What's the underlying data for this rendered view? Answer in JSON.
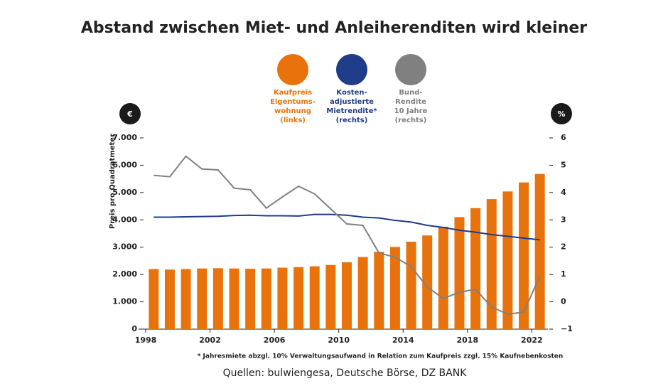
{
  "chart_data": {
    "type": "bar",
    "title": "Abstand zwischen Miet- und Anleiherenditen wird kleiner",
    "ylabel": "Preis pro Quadratmeter",
    "yunit": "€",
    "y2unit": "%",
    "footnote": "* Jahresmiete abzgl. 10% Verwaltungsaufwand in Relation zum Kaufpreis zzgl. 15% Kaufnebenkosten",
    "source": "Quellen: bulwiengesa, Deutsche Börse, DZ BANK",
    "x": [
      1998,
      1999,
      2000,
      2001,
      2002,
      2003,
      2004,
      2005,
      2006,
      2007,
      2008,
      2009,
      2010,
      2011,
      2012,
      2013,
      2014,
      2015,
      2016,
      2017,
      2018,
      2019,
      2020,
      2021,
      2022
    ],
    "xlim": [
      1998,
      2023
    ],
    "xticks": [
      1998,
      2002,
      2006,
      2010,
      2014,
      2018,
      2022
    ],
    "ylim": [
      0,
      7000
    ],
    "yticks": [
      {
        "value": 0,
        "label": "0"
      },
      {
        "value": 1000,
        "label": "1.000"
      },
      {
        "value": 2000,
        "label": "2.000"
      },
      {
        "value": 3000,
        "label": "3.000"
      },
      {
        "value": 4000,
        "label": "4.000"
      },
      {
        "value": 5000,
        "label": "5.000"
      },
      {
        "value": 6000,
        "label": "6.000"
      },
      {
        "value": 7000,
        "label": "7.000"
      }
    ],
    "y2lim": [
      -1,
      6
    ],
    "y2ticks": [
      {
        "value": -1,
        "label": "−1"
      },
      0,
      1,
      2,
      3,
      4,
      5,
      6
    ],
    "series": [
      {
        "name": "Kaufpreis\nEigentums-\nwohnung\n(links)",
        "type": "bar",
        "color": "#e8730c",
        "values": [
          2200,
          2180,
          2200,
          2220,
          2230,
          2220,
          2210,
          2220,
          2250,
          2270,
          2300,
          2350,
          2450,
          2640,
          2830,
          3010,
          3200,
          3430,
          3750,
          4100,
          4430,
          4760,
          5040,
          5370,
          5680
        ]
      },
      {
        "name": "Kosten-\nadjustierte\nMietrendite*\n(rechts)",
        "type": "line",
        "axis": "y2",
        "color": "#1f3c88",
        "values": [
          3.1,
          3.1,
          3.11,
          3.12,
          3.13,
          3.16,
          3.17,
          3.15,
          3.15,
          3.14,
          3.2,
          3.2,
          3.17,
          3.1,
          3.07,
          2.98,
          2.92,
          2.8,
          2.72,
          2.62,
          2.55,
          2.46,
          2.4,
          2.33,
          2.27
        ]
      },
      {
        "name": "Bund-\nRendite\n10 Jahre\n(rechts)",
        "type": "line",
        "axis": "y2",
        "color": "#808080",
        "values": [
          4.63,
          4.58,
          5.33,
          4.86,
          4.83,
          4.16,
          4.1,
          3.43,
          3.84,
          4.23,
          3.95,
          3.4,
          2.85,
          2.8,
          1.79,
          1.63,
          1.29,
          0.54,
          0.12,
          0.35,
          0.46,
          -0.19,
          -0.45,
          -0.38,
          0.95
        ]
      }
    ]
  }
}
